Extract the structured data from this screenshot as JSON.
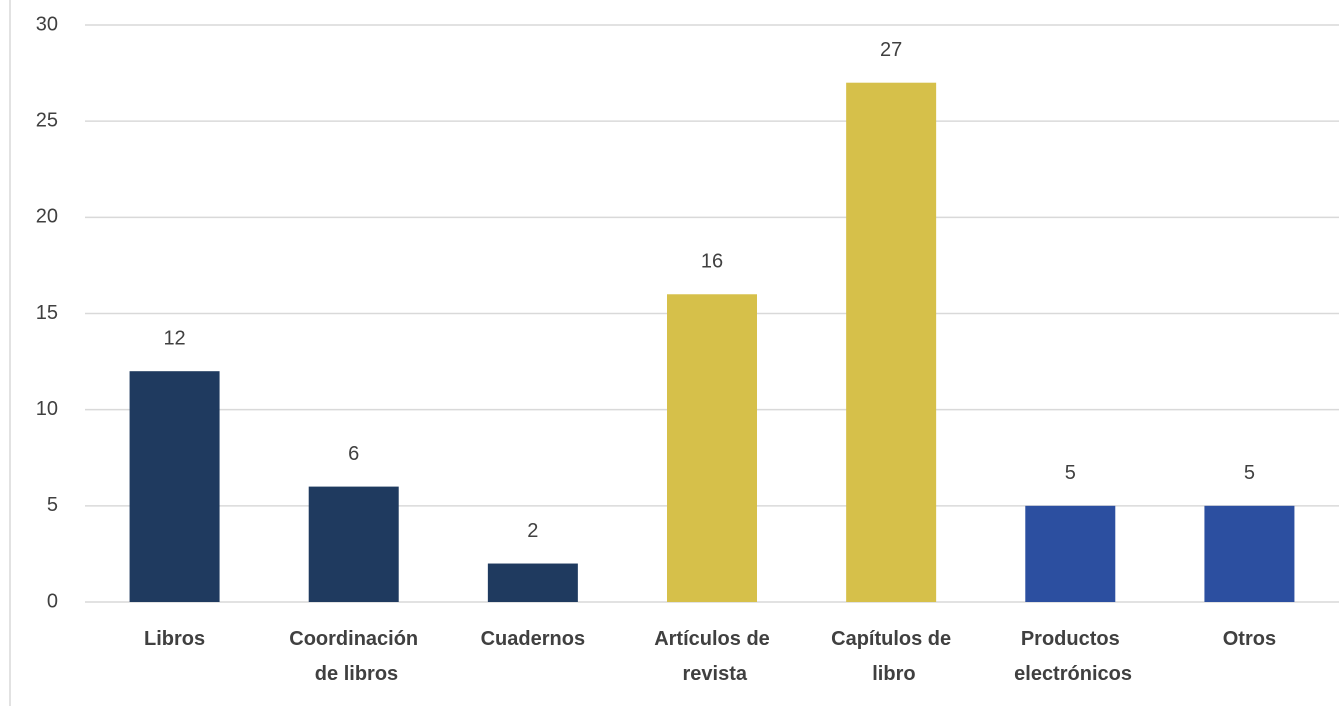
{
  "chart_data": {
    "type": "bar",
    "categories": [
      "Libros",
      "Coordinación de libros",
      "Cuadernos",
      "Artículos de revista",
      "Capítulos de libro",
      "Productos electrónicos",
      "Otros"
    ],
    "values": [
      12,
      6,
      2,
      16,
      27,
      5,
      5
    ],
    "colors": [
      "#1f3a5f",
      "#1f3a5f",
      "#1f3a5f",
      "#d6c04a",
      "#d6c04a",
      "#2c4fa0",
      "#2c4fa0"
    ],
    "ylim": [
      0,
      30
    ],
    "yticks": [
      0,
      5,
      10,
      15,
      20,
      25,
      30
    ],
    "grid": true
  }
}
